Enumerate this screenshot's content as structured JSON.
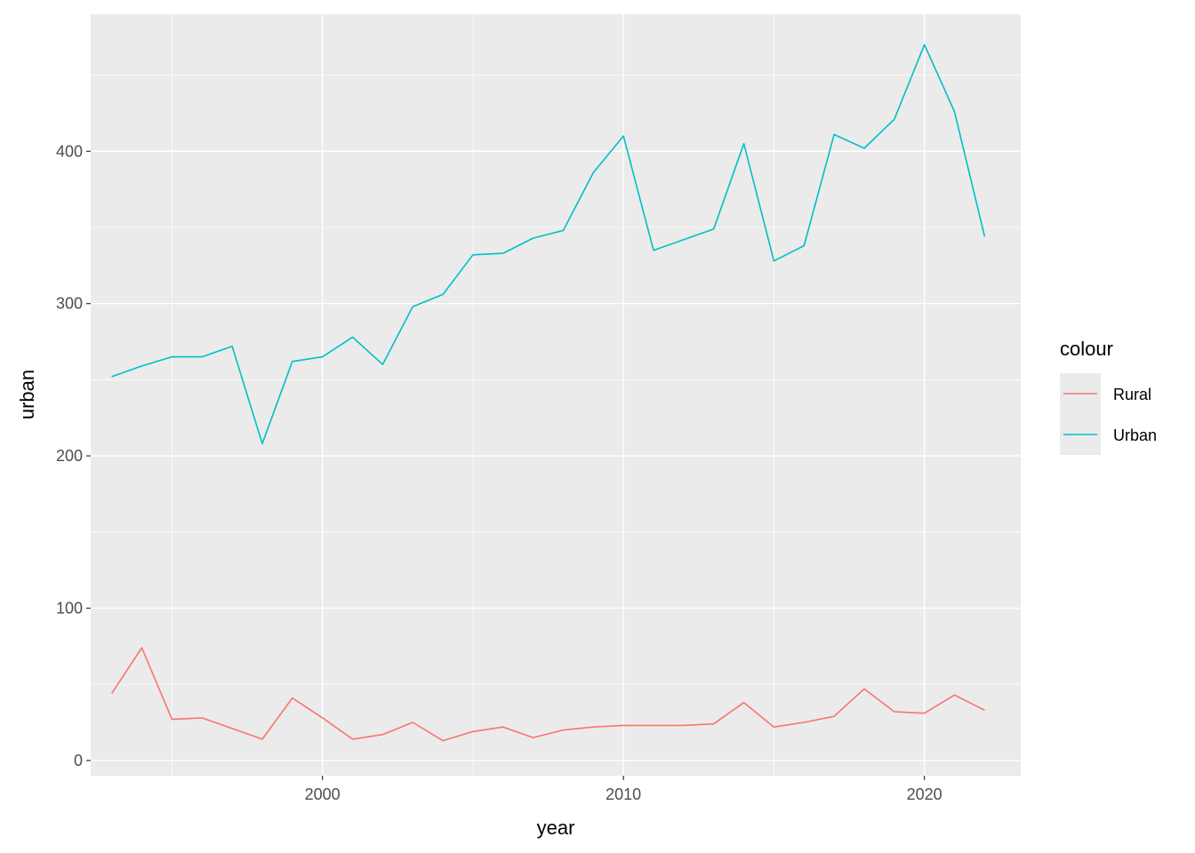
{
  "chart_data": {
    "type": "line",
    "title": "",
    "xlabel": "year",
    "ylabel": "urban",
    "xlim": [
      1992.3,
      2023.2
    ],
    "ylim": [
      -10,
      490
    ],
    "x_ticks": [
      2000,
      2010,
      2020
    ],
    "y_ticks": [
      0,
      100,
      200,
      300,
      400
    ],
    "grid": true,
    "legend": {
      "title": "colour",
      "position": "right",
      "entries": [
        "Rural",
        "Urban"
      ]
    },
    "x": [
      1993,
      1994,
      1995,
      1996,
      1997,
      1998,
      1999,
      2000,
      2001,
      2002,
      2003,
      2004,
      2005,
      2006,
      2007,
      2008,
      2009,
      2010,
      2011,
      2012,
      2013,
      2014,
      2015,
      2016,
      2017,
      2018,
      2019,
      2020,
      2021,
      2022
    ],
    "series": [
      {
        "name": "Rural",
        "color": "#F8766D",
        "values": [
          44,
          74,
          27,
          28,
          21,
          14,
          41,
          28,
          14,
          17,
          25,
          13,
          19,
          22,
          15,
          20,
          22,
          23,
          23,
          23,
          24,
          38,
          22,
          25,
          29,
          47,
          32,
          31,
          43,
          33
        ]
      },
      {
        "name": "Urban",
        "color": "#00BFC4",
        "values": [
          252,
          259,
          265,
          265,
          272,
          208,
          262,
          265,
          278,
          260,
          298,
          306,
          332,
          333,
          343,
          348,
          386,
          410,
          335,
          342,
          349,
          405,
          328,
          338,
          411,
          402,
          421,
          470,
          426,
          344
        ]
      }
    ]
  }
}
